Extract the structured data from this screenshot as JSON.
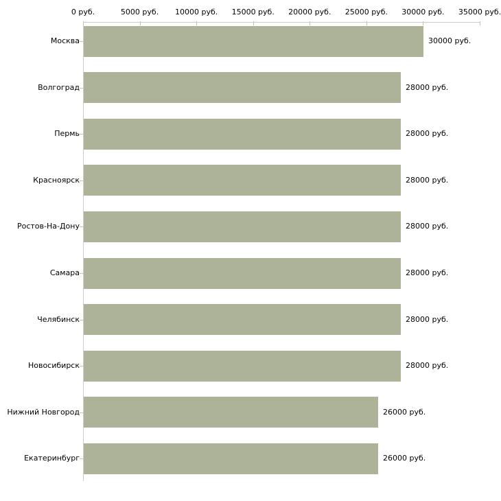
{
  "chart_data": {
    "type": "bar",
    "orientation": "horizontal",
    "title": "",
    "xlabel": "",
    "ylabel": "",
    "categories": [
      "Москва",
      "Волгоград",
      "Пермь",
      "Красноярск",
      "Ростов-На-Дону",
      "Самара",
      "Челябинск",
      "Новосибирск",
      "Нижний Новгород",
      "Екатеринбург"
    ],
    "values": [
      30000,
      28000,
      28000,
      28000,
      28000,
      28000,
      28000,
      28000,
      26000,
      26000
    ],
    "value_labels": [
      "30000 руб.",
      "28000 руб.",
      "28000 руб.",
      "28000 руб.",
      "28000 руб.",
      "28000 руб.",
      "28000 руб.",
      "28000 руб.",
      "26000 руб.",
      "26000 руб."
    ],
    "unit": "руб.",
    "xlim": [
      0,
      35000
    ],
    "x_ticks": [
      0,
      5000,
      10000,
      15000,
      20000,
      25000,
      30000,
      35000
    ],
    "x_tick_labels": [
      "0 руб.",
      "5000 руб.",
      "10000 руб.",
      "15000 руб.",
      "20000 руб.",
      "25000 руб.",
      "30000 руб.",
      "35000 руб."
    ],
    "grid": false,
    "legend": "none",
    "axis_position": "top-left",
    "colors": {
      "bar": "#adb398",
      "axis_line": "#cccccc",
      "tick_mark": "#c2c6a4",
      "text": "#000000",
      "background": "#ffffff"
    }
  }
}
